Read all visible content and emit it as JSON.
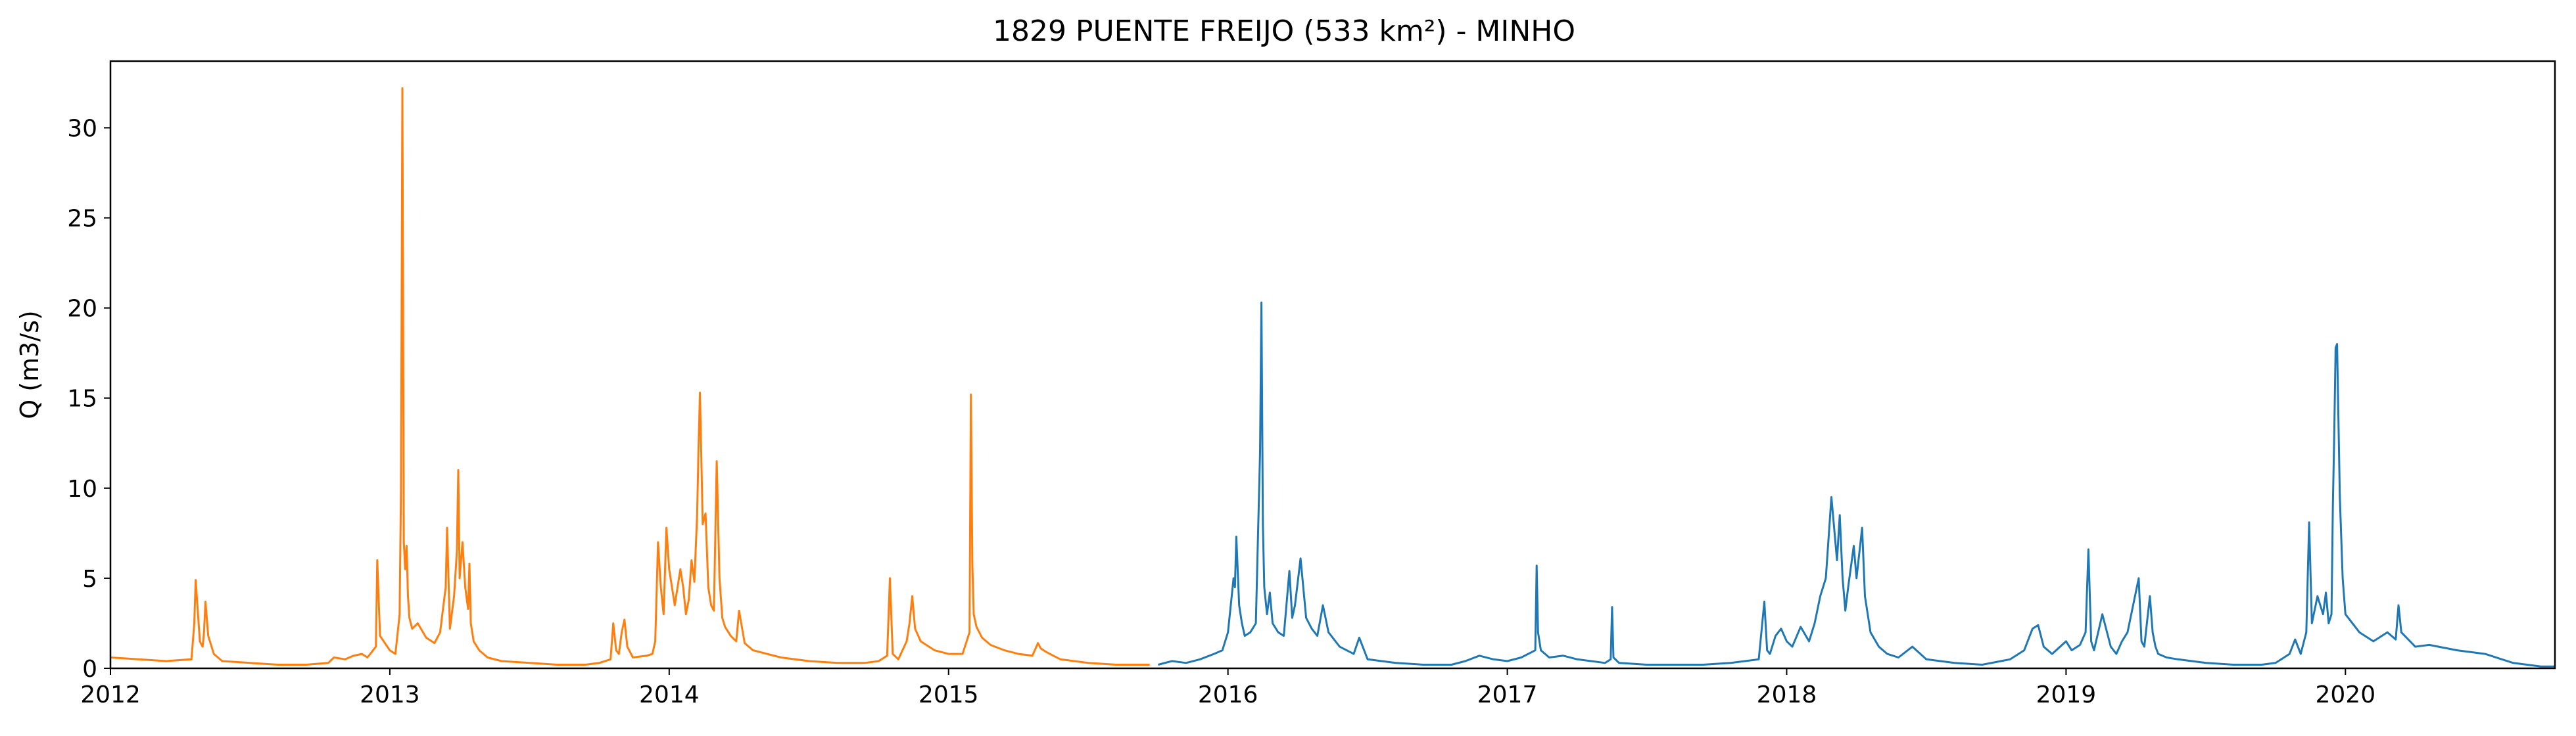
{
  "chart_data": {
    "type": "line",
    "title": "1829 PUENTE FREIJO (533 km²) - MINHO",
    "xlabel": "",
    "ylabel": "Q (m3/s)",
    "x_unit": "decimal year",
    "xlim": [
      2012.0,
      2020.75
    ],
    "ylim": [
      0,
      33.7
    ],
    "grid": false,
    "legend": "none",
    "x_ticks": [
      "2012",
      "2013",
      "2014",
      "2015",
      "2016",
      "2017",
      "2018",
      "2019",
      "2020"
    ],
    "y_ticks": [
      "0",
      "5",
      "10",
      "15",
      "20",
      "25",
      "30"
    ],
    "series": [
      {
        "color": "#ff7f0e",
        "x": [
          2012.0,
          2012.1,
          2012.2,
          2012.29,
          2012.3,
          2012.305,
          2012.32,
          2012.33,
          2012.335,
          2012.34,
          2012.35,
          2012.37,
          2012.4,
          2012.5,
          2012.6,
          2012.7,
          2012.78,
          2012.8,
          2012.84,
          2012.87,
          2012.9,
          2012.92,
          2012.95,
          2012.955,
          2012.965,
          2013.0,
          2013.02,
          2013.035,
          2013.04,
          2013.045,
          2013.05,
          2013.055,
          2013.06,
          2013.065,
          2013.07,
          2013.08,
          2013.1,
          2013.13,
          2013.16,
          2013.18,
          2013.2,
          2013.205,
          2013.215,
          2013.23,
          2013.24,
          2013.245,
          2013.25,
          2013.26,
          2013.27,
          2013.28,
          2013.285,
          2013.29,
          2013.3,
          2013.32,
          2013.35,
          2013.4,
          2013.5,
          2013.6,
          2013.7,
          2013.75,
          2013.79,
          2013.8,
          2013.81,
          2013.82,
          2013.83,
          2013.84,
          2013.85,
          2013.87,
          2013.92,
          2013.94,
          2013.95,
          2013.96,
          2013.97,
          2013.98,
          2013.99,
          2014.0,
          2014.02,
          2014.04,
          2014.05,
          2014.06,
          2014.07,
          2014.08,
          2014.09,
          2014.1,
          2014.105,
          2014.11,
          2014.12,
          2014.13,
          2014.14,
          2014.15,
          2014.16,
          2014.17,
          2014.18,
          2014.19,
          2014.2,
          2014.22,
          2014.24,
          2014.25,
          2014.27,
          2014.3,
          2014.4,
          2014.5,
          2014.6,
          2014.7,
          2014.75,
          2014.78,
          2014.79,
          2014.8,
          2014.82,
          2014.85,
          2014.86,
          2014.87,
          2014.88,
          2014.9,
          2014.95,
          2015.0,
          2015.05,
          2015.075,
          2015.08,
          2015.085,
          2015.09,
          2015.1,
          2015.12,
          2015.15,
          2015.2,
          2015.25,
          2015.3,
          2015.32,
          2015.33,
          2015.35,
          2015.4,
          2015.5,
          2015.6,
          2015.72
        ],
        "y": [
          0.6,
          0.5,
          0.4,
          0.5,
          2.5,
          4.9,
          1.5,
          1.2,
          2.0,
          3.7,
          1.8,
          0.8,
          0.4,
          0.3,
          0.2,
          0.2,
          0.3,
          0.6,
          0.5,
          0.7,
          0.8,
          0.6,
          1.2,
          6.0,
          1.8,
          1.0,
          0.8,
          3.0,
          10.0,
          32.2,
          7.0,
          5.5,
          6.8,
          4.0,
          2.8,
          2.2,
          2.5,
          1.7,
          1.4,
          2.0,
          4.5,
          7.8,
          2.2,
          4.0,
          6.5,
          11.0,
          5.0,
          7.0,
          4.5,
          3.3,
          5.8,
          2.5,
          1.5,
          1.0,
          0.6,
          0.4,
          0.3,
          0.2,
          0.2,
          0.3,
          0.5,
          2.5,
          1.0,
          0.8,
          2.0,
          2.7,
          1.2,
          0.6,
          0.7,
          0.8,
          1.5,
          7.0,
          4.5,
          3.0,
          7.8,
          5.5,
          3.5,
          5.5,
          4.5,
          3.0,
          3.8,
          6.0,
          4.8,
          8.5,
          12.2,
          15.3,
          8.0,
          8.6,
          4.5,
          3.5,
          3.2,
          11.5,
          5.0,
          2.8,
          2.3,
          1.8,
          1.5,
          3.2,
          1.4,
          1.0,
          0.6,
          0.4,
          0.3,
          0.3,
          0.4,
          0.7,
          5.0,
          0.8,
          0.5,
          1.5,
          2.5,
          4.0,
          2.2,
          1.5,
          1.0,
          0.8,
          0.8,
          2.0,
          15.2,
          5.8,
          3.0,
          2.3,
          1.7,
          1.3,
          1.0,
          0.8,
          0.7,
          1.4,
          1.1,
          0.9,
          0.5,
          0.3,
          0.2,
          0.2
        ]
      },
      {
        "color": "#1f77b4",
        "x": [
          2015.75,
          2015.8,
          2015.85,
          2015.9,
          2015.95,
          2015.98,
          2016.0,
          2016.02,
          2016.025,
          2016.03,
          2016.04,
          2016.05,
          2016.06,
          2016.08,
          2016.1,
          2016.115,
          2016.12,
          2016.125,
          2016.13,
          2016.14,
          2016.15,
          2016.16,
          2016.18,
          2016.2,
          2016.22,
          2016.23,
          2016.24,
          2016.26,
          2016.28,
          2016.3,
          2016.32,
          2016.34,
          2016.36,
          2016.4,
          2016.45,
          2016.47,
          2016.5,
          2016.6,
          2016.7,
          2016.8,
          2016.85,
          2016.9,
          2016.95,
          2017.0,
          2017.05,
          2017.1,
          2017.105,
          2017.11,
          2017.12,
          2017.15,
          2017.2,
          2017.25,
          2017.3,
          2017.35,
          2017.37,
          2017.375,
          2017.38,
          2017.4,
          2017.5,
          2017.6,
          2017.7,
          2017.8,
          2017.9,
          2017.92,
          2017.93,
          2017.94,
          2017.96,
          2017.98,
          2018.0,
          2018.02,
          2018.05,
          2018.08,
          2018.1,
          2018.12,
          2018.14,
          2018.16,
          2018.18,
          2018.19,
          2018.2,
          2018.21,
          2018.22,
          2018.24,
          2018.25,
          2018.27,
          2018.28,
          2018.3,
          2018.33,
          2018.36,
          2018.4,
          2018.45,
          2018.5,
          2018.6,
          2018.7,
          2018.8,
          2018.85,
          2018.88,
          2018.9,
          2018.92,
          2018.95,
          2019.0,
          2019.02,
          2019.05,
          2019.07,
          2019.08,
          2019.09,
          2019.1,
          2019.13,
          2019.16,
          2019.18,
          2019.2,
          2019.22,
          2019.26,
          2019.27,
          2019.28,
          2019.3,
          2019.31,
          2019.32,
          2019.33,
          2019.36,
          2019.4,
          2019.5,
          2019.6,
          2019.7,
          2019.75,
          2019.8,
          2019.82,
          2019.84,
          2019.86,
          2019.87,
          2019.88,
          2019.9,
          2019.92,
          2019.93,
          2019.94,
          2019.95,
          2019.955,
          2019.96,
          2019.965,
          2019.97,
          2019.98,
          2019.99,
          2020.0,
          2020.05,
          2020.1,
          2020.15,
          2020.18,
          2020.19,
          2020.2,
          2020.25,
          2020.3,
          2020.4,
          2020.5,
          2020.6,
          2020.7,
          2020.75
        ],
        "y": [
          0.2,
          0.4,
          0.3,
          0.5,
          0.8,
          1.0,
          2.0,
          5.0,
          4.5,
          7.3,
          3.5,
          2.5,
          1.8,
          2.0,
          2.5,
          12.0,
          20.3,
          8.0,
          4.5,
          3.0,
          4.2,
          2.5,
          2.0,
          1.8,
          5.4,
          2.8,
          3.5,
          6.1,
          2.8,
          2.2,
          1.8,
          3.5,
          2.0,
          1.2,
          0.8,
          1.7,
          0.5,
          0.3,
          0.2,
          0.2,
          0.4,
          0.7,
          0.5,
          0.4,
          0.6,
          1.0,
          5.7,
          2.0,
          1.0,
          0.6,
          0.7,
          0.5,
          0.4,
          0.3,
          0.5,
          3.4,
          0.6,
          0.3,
          0.2,
          0.2,
          0.2,
          0.3,
          0.5,
          3.7,
          1.0,
          0.8,
          1.8,
          2.2,
          1.5,
          1.2,
          2.3,
          1.5,
          2.5,
          4.0,
          5.0,
          9.5,
          6.0,
          8.5,
          5.0,
          3.2,
          4.5,
          6.8,
          5.0,
          7.8,
          4.0,
          2.0,
          1.2,
          0.8,
          0.6,
          1.2,
          0.5,
          0.3,
          0.2,
          0.5,
          1.0,
          2.2,
          2.4,
          1.2,
          0.8,
          1.5,
          1.0,
          1.3,
          2.0,
          6.6,
          1.5,
          1.0,
          3.0,
          1.2,
          0.8,
          1.5,
          2.0,
          5.0,
          1.5,
          1.2,
          4.0,
          2.0,
          1.2,
          0.8,
          0.6,
          0.5,
          0.3,
          0.2,
          0.2,
          0.3,
          0.8,
          1.6,
          0.8,
          2.0,
          8.1,
          2.5,
          4.0,
          3.0,
          4.2,
          2.5,
          3.0,
          9.0,
          13.0,
          17.8,
          18.0,
          9.5,
          5.0,
          3.0,
          2.0,
          1.5,
          2.0,
          1.6,
          3.5,
          2.0,
          1.2,
          1.3,
          1.0,
          0.8,
          0.3,
          0.1,
          0.1
        ]
      }
    ]
  }
}
